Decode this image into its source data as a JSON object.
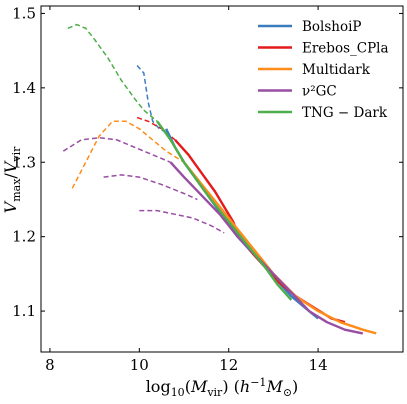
{
  "chart_data": {
    "type": "line",
    "xlabel": "log10(Mvir) (h−1 M⊙)",
    "ylabel": "Vmax/Vvir",
    "xlim": [
      7.8,
      15.9
    ],
    "ylim": [
      1.045,
      1.51
    ],
    "xticks": [
      8,
      10,
      12,
      14
    ],
    "yticks": [
      1.1,
      1.2,
      1.3,
      1.4,
      1.5
    ],
    "grid": false,
    "legend_position": "top-right",
    "series": [
      {
        "name": "BolshoiP",
        "color": "#3a7dbf",
        "solid": [
          [
            10.6,
            1.345
          ],
          [
            10.8,
            1.32
          ],
          [
            11.0,
            1.3
          ],
          [
            11.3,
            1.275
          ],
          [
            11.6,
            1.25
          ],
          [
            11.9,
            1.225
          ],
          [
            12.2,
            1.2
          ],
          [
            12.5,
            1.18
          ],
          [
            12.8,
            1.16
          ],
          [
            13.1,
            1.14
          ],
          [
            13.4,
            1.12
          ],
          [
            13.7,
            1.105
          ],
          [
            14.0,
            1.09
          ]
        ],
        "dashed": [
          [
            9.95,
            1.43
          ],
          [
            10.1,
            1.42
          ],
          [
            10.2,
            1.38
          ],
          [
            10.3,
            1.355
          ],
          [
            10.45,
            1.345
          ],
          [
            10.6,
            1.34
          ]
        ]
      },
      {
        "name": "Erebos_CPla",
        "color": "#e41a1c",
        "solid": [
          [
            10.8,
            1.33
          ],
          [
            11.1,
            1.31
          ],
          [
            11.4,
            1.285
          ],
          [
            11.7,
            1.26
          ],
          [
            11.9,
            1.24
          ],
          [
            12.1,
            1.22
          ],
          [
            12.2,
            1.205
          ],
          [
            12.5,
            1.18
          ],
          [
            12.8,
            1.16
          ],
          [
            13.1,
            1.14
          ],
          [
            13.5,
            1.12
          ],
          [
            13.9,
            1.105
          ],
          [
            14.3,
            1.09
          ],
          [
            14.6,
            1.085
          ]
        ],
        "dashed": [
          [
            9.95,
            1.36
          ],
          [
            10.2,
            1.355
          ],
          [
            10.5,
            1.345
          ],
          [
            10.8,
            1.33
          ]
        ]
      },
      {
        "name": "Multidark",
        "color": "#ff8c1a",
        "solid": [
          [
            11.0,
            1.3
          ],
          [
            11.4,
            1.27
          ],
          [
            11.8,
            1.24
          ],
          [
            12.2,
            1.21
          ],
          [
            12.6,
            1.18
          ],
          [
            13.0,
            1.15
          ],
          [
            13.5,
            1.12
          ],
          [
            14.0,
            1.1
          ],
          [
            14.5,
            1.085
          ],
          [
            15.0,
            1.075
          ],
          [
            15.3,
            1.07
          ]
        ],
        "dashed": [
          [
            8.5,
            1.265
          ],
          [
            8.8,
            1.3
          ],
          [
            9.1,
            1.335
          ],
          [
            9.4,
            1.355
          ],
          [
            9.7,
            1.355
          ],
          [
            10.0,
            1.345
          ],
          [
            10.3,
            1.33
          ],
          [
            10.6,
            1.315
          ],
          [
            11.0,
            1.3
          ]
        ]
      },
      {
        "name": "ν²GC",
        "color": "#984ea3",
        "solid": [
          [
            10.7,
            1.3
          ],
          [
            11.0,
            1.28
          ],
          [
            11.4,
            1.255
          ],
          [
            11.8,
            1.23
          ],
          [
            12.2,
            1.2
          ],
          [
            12.6,
            1.175
          ],
          [
            13.0,
            1.15
          ],
          [
            13.4,
            1.125
          ],
          [
            13.8,
            1.1
          ],
          [
            14.2,
            1.085
          ],
          [
            14.6,
            1.075
          ],
          [
            15.0,
            1.07
          ]
        ],
        "dashed": [
          [
            8.3,
            1.315
          ],
          [
            8.7,
            1.33
          ],
          [
            9.1,
            1.333
          ],
          [
            9.5,
            1.33
          ],
          [
            9.9,
            1.32
          ],
          [
            10.3,
            1.31
          ],
          [
            10.7,
            1.3
          ]
        ]
      },
      {
        "name": "TNG − Dark",
        "color": "#4daf4a",
        "solid": [
          [
            10.4,
            1.355
          ],
          [
            10.7,
            1.33
          ],
          [
            11.0,
            1.3
          ],
          [
            11.3,
            1.275
          ],
          [
            11.6,
            1.25
          ],
          [
            12.0,
            1.22
          ],
          [
            12.4,
            1.19
          ],
          [
            12.8,
            1.16
          ],
          [
            13.1,
            1.135
          ],
          [
            13.4,
            1.115
          ]
        ],
        "dashed": [
          [
            8.4,
            1.48
          ],
          [
            8.6,
            1.485
          ],
          [
            8.8,
            1.48
          ],
          [
            9.0,
            1.465
          ],
          [
            9.3,
            1.44
          ],
          [
            9.6,
            1.41
          ],
          [
            9.9,
            1.385
          ],
          [
            10.1,
            1.37
          ],
          [
            10.4,
            1.355
          ]
        ]
      }
    ],
    "extra_dashed_purple": [
      [
        [
          9.2,
          1.28
        ],
        [
          9.6,
          1.283
        ],
        [
          10.0,
          1.28
        ],
        [
          10.5,
          1.27
        ],
        [
          11.0,
          1.258
        ],
        [
          11.3,
          1.25
        ]
      ],
      [
        [
          10.0,
          1.235
        ],
        [
          10.4,
          1.235
        ],
        [
          10.8,
          1.23
        ],
        [
          11.2,
          1.225
        ],
        [
          11.6,
          1.215
        ],
        [
          11.9,
          1.205
        ]
      ]
    ]
  }
}
